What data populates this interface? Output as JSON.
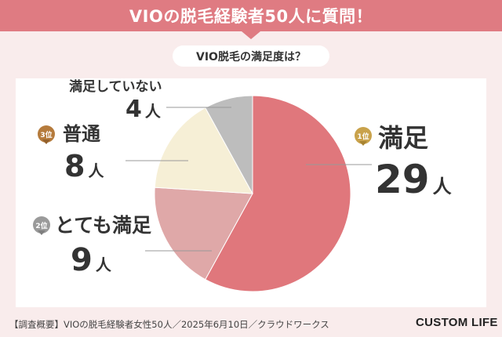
{
  "title": "VIOの脱毛経験者50人に質問！",
  "question": "VIO脱毛の満足度は？",
  "chart_data": {
    "type": "pie",
    "slices": [
      {
        "label": "満足",
        "value": 29,
        "unit": "人",
        "rank": "1位",
        "color": "#e0777c"
      },
      {
        "label": "とても満足",
        "value": 9,
        "unit": "人",
        "rank": "2位",
        "color": "#dfa8a8"
      },
      {
        "label": "普通",
        "value": 8,
        "unit": "人",
        "rank": "3位",
        "color": "#f6efd6"
      },
      {
        "label": "満足していない",
        "value": 4,
        "unit": "人",
        "rank": "",
        "color": "#bdbdbd"
      }
    ]
  },
  "footer": "【調査概要】VIOの脱毛経験者女性50人／2025年6月10日／クラウドワークス",
  "brand": "CUSTOM LIFE"
}
